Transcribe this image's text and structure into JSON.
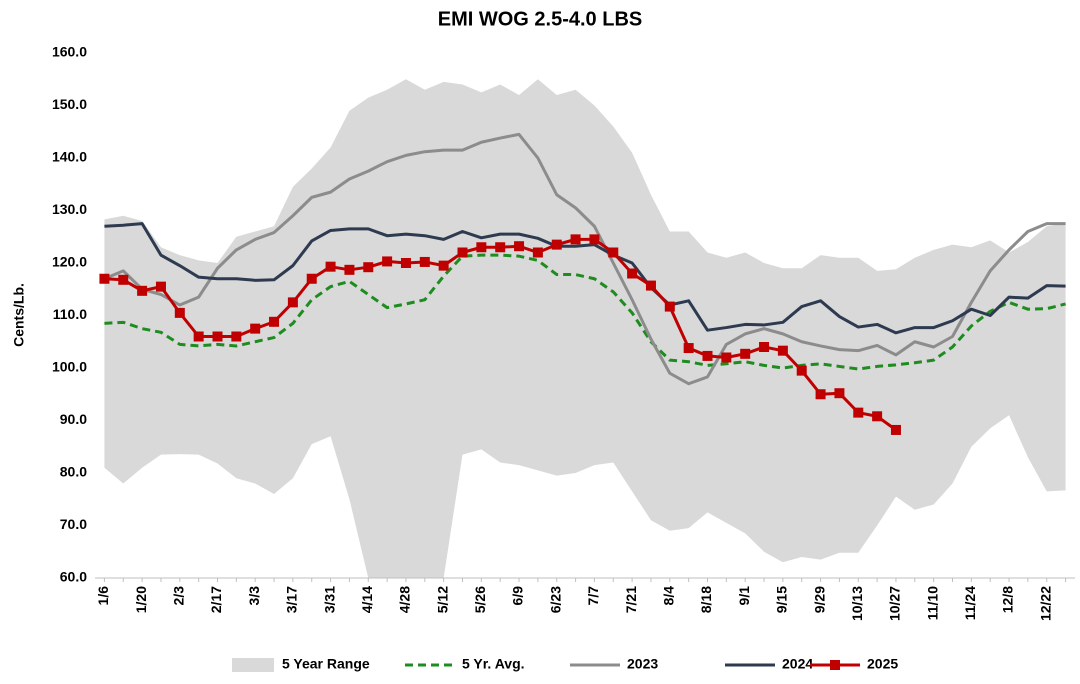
{
  "chart_data": {
    "type": "line",
    "title": "EMI WOG 2.5-4.0 LBS",
    "y_label": "Cents/Lb.",
    "categories": [
      "1/6",
      null,
      "1/20",
      null,
      "2/3",
      null,
      "2/17",
      null,
      "3/3",
      null,
      "3/17",
      null,
      "3/31",
      null,
      "4/14",
      null,
      "4/28",
      null,
      "5/12",
      null,
      "5/26",
      null,
      "6/9",
      null,
      "6/23",
      null,
      "7/7",
      null,
      "7/21",
      null,
      "8/4",
      null,
      "8/18",
      null,
      "9/1",
      null,
      "9/15",
      null,
      "9/29",
      null,
      "10/13",
      null,
      "10/27",
      null,
      "11/10",
      null,
      "11/24",
      null,
      "12/8",
      null,
      "12/22",
      null
    ],
    "ylim": [
      60,
      160
    ],
    "yticks": [
      {
        "value": 60,
        "label": "60.0"
      },
      {
        "value": 70,
        "label": "70.0"
      },
      {
        "value": 80,
        "label": "80.0"
      },
      {
        "value": 90,
        "label": "90.0"
      },
      {
        "value": 100,
        "label": "100.0"
      },
      {
        "value": 110,
        "label": "110.0"
      },
      {
        "value": 120,
        "label": "120.0"
      },
      {
        "value": 130,
        "label": "130.0"
      },
      {
        "value": 140,
        "label": "140.0"
      },
      {
        "value": 150,
        "label": "150.0"
      },
      {
        "value": 160,
        "label": "160.0"
      }
    ],
    "grid": false,
    "legend": "bottom",
    "series": [
      {
        "name": "5 Year Range",
        "kind": "range",
        "color": "#d9d9d9",
        "high": [
          128.3,
          129,
          128,
          123,
          121.5,
          120.5,
          120,
          125,
          126,
          127,
          134.5,
          138,
          142,
          149,
          151.5,
          153,
          155,
          153,
          154.5,
          154,
          152.5,
          154,
          152,
          155,
          152,
          153,
          150,
          146,
          141,
          133,
          126,
          126,
          122,
          121,
          122,
          120,
          119,
          119,
          121.5,
          121,
          121,
          118.5,
          118.8,
          121,
          122.5,
          123.5,
          123,
          124.3,
          122,
          124,
          127,
          127.5
        ],
        "low": [
          81,
          78,
          81,
          83.5,
          83.6,
          83.5,
          81.8,
          79,
          78,
          76,
          79,
          85.5,
          87,
          75,
          60,
          60,
          60,
          60,
          60,
          83.5,
          84.5,
          82,
          81.5,
          80.5,
          79.5,
          80,
          81.5,
          82,
          76.5,
          71,
          69,
          69.5,
          72.5,
          70.5,
          68.5,
          65,
          63,
          64,
          63.5,
          64.8,
          64.8,
          70,
          75.5,
          73,
          74,
          78,
          85,
          88.5,
          91,
          83,
          76.5,
          76.7
        ]
      },
      {
        "name": "5 Yr. Avg.",
        "dashed": true,
        "color": "#1e8c1e",
        "values": [
          108.5,
          108.7,
          107.5,
          106.8,
          104.5,
          104.2,
          104.5,
          104.2,
          105,
          105.8,
          108.5,
          113,
          115.5,
          116.5,
          114,
          111.5,
          112.2,
          113,
          117.5,
          121.3,
          121.5,
          121.5,
          121.3,
          120.5,
          117.8,
          117.8,
          117,
          114.5,
          110.5,
          105,
          101.5,
          101.2,
          100.5,
          100.8,
          101.2,
          100.5,
          100,
          100.5,
          100.8,
          100.3,
          99.8,
          100.3,
          100.6,
          101,
          101.5,
          104,
          108,
          110.8,
          112.5,
          111.2,
          111.3,
          112.2
        ]
      },
      {
        "name": "2023",
        "color": "#8c8c8c",
        "values": [
          117,
          118.5,
          115,
          114,
          112,
          113.5,
          119,
          122.5,
          124.5,
          125.8,
          129,
          132.5,
          133.5,
          136,
          137.5,
          139.3,
          140.5,
          141.2,
          141.5,
          141.5,
          143,
          143.8,
          144.5,
          140,
          133,
          130.5,
          127,
          120,
          113,
          105.5,
          99,
          97,
          98.3,
          104.5,
          106.5,
          107.5,
          106.5,
          105,
          104.2,
          103.5,
          103.3,
          104.3,
          102.5,
          105,
          104,
          106,
          112.5,
          118.5,
          122.5,
          126,
          127.5,
          127.5
        ]
      },
      {
        "name": "2024",
        "color": "#2e3a4f",
        "values": [
          127,
          127.2,
          127.5,
          121.5,
          119.5,
          117.3,
          117,
          117,
          116.7,
          116.8,
          119.5,
          124.2,
          126.2,
          126.5,
          126.5,
          125.2,
          125.5,
          125.2,
          124.5,
          126,
          124.8,
          125.5,
          125.5,
          124.7,
          123.2,
          123.2,
          123.5,
          121.5,
          120,
          115.3,
          112,
          112.8,
          107.2,
          107.7,
          108.3,
          108.2,
          108.7,
          111.7,
          112.8,
          109.8,
          107.8,
          108.3,
          106.7,
          107.7,
          107.7,
          109,
          111.2,
          110,
          113.5,
          113.3,
          115.7,
          115.6
        ]
      },
      {
        "name": "2025",
        "color": "#c00000",
        "markers": true,
        "values": [
          117,
          116.8,
          114.7,
          115.5,
          110.5,
          106,
          106,
          106,
          107.5,
          108.8,
          112.5,
          117,
          119.3,
          118.7,
          119.2,
          120.3,
          120,
          120.2,
          119.5,
          122,
          123,
          123,
          123.2,
          122,
          123.5,
          124.5,
          124.5,
          122,
          118,
          115.7,
          111.7,
          103.8,
          102.3,
          102,
          102.7,
          104,
          103.3,
          99.5,
          95,
          95.2,
          91.5,
          90.8,
          88.2,
          null,
          null,
          null,
          null,
          null,
          null,
          null,
          null,
          null
        ]
      }
    ]
  }
}
